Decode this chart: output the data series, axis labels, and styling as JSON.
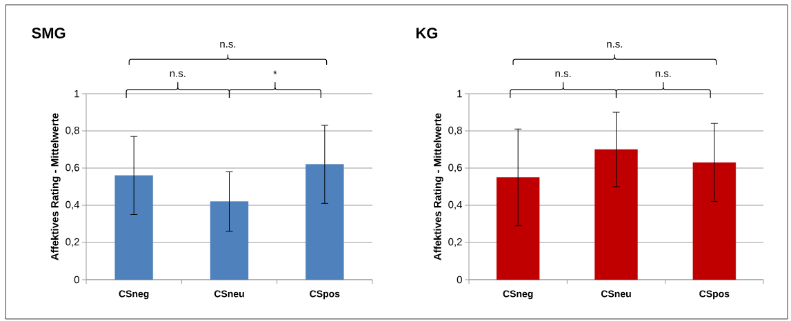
{
  "chart_data": [
    {
      "type": "bar",
      "title": "SMG",
      "ylabel": "Affektives Rating - Mittelwerte",
      "categories": [
        "CSneg",
        "CSneu",
        "CSpos"
      ],
      "values": [
        0.56,
        0.42,
        0.62
      ],
      "errors": [
        0.21,
        0.16,
        0.21
      ],
      "color": "#4f81bd",
      "ylim": [
        0,
        1
      ],
      "yticks": [
        0,
        {
          "value": 0.2,
          "label": "0,2"
        },
        {
          "value": 0.4,
          "label": "0,4"
        },
        {
          "value": 0.6,
          "label": "0,6"
        },
        {
          "value": 0.8,
          "label": "0,8"
        },
        1
      ],
      "grid": "y",
      "annotations": [
        "n.s.",
        "n.s.",
        "*"
      ]
    },
    {
      "type": "bar",
      "title": "KG",
      "ylabel": "Affektives Rating - Mittelwerte",
      "categories": [
        "CSneg",
        "CSneu",
        "CSpos"
      ],
      "values": [
        0.55,
        0.7,
        0.63
      ],
      "errors": [
        0.26,
        0.2,
        0.21
      ],
      "color": "#c00000",
      "ylim": [
        0,
        1
      ],
      "yticks": [
        0,
        {
          "value": 0.2,
          "label": "0,2"
        },
        {
          "value": 0.4,
          "label": "0,4"
        },
        {
          "value": 0.6,
          "label": "0,6"
        },
        {
          "value": 0.8,
          "label": "0,8"
        },
        1
      ],
      "grid": "y",
      "annotations": [
        "n.s.",
        "n.s.",
        "n.s."
      ]
    }
  ]
}
